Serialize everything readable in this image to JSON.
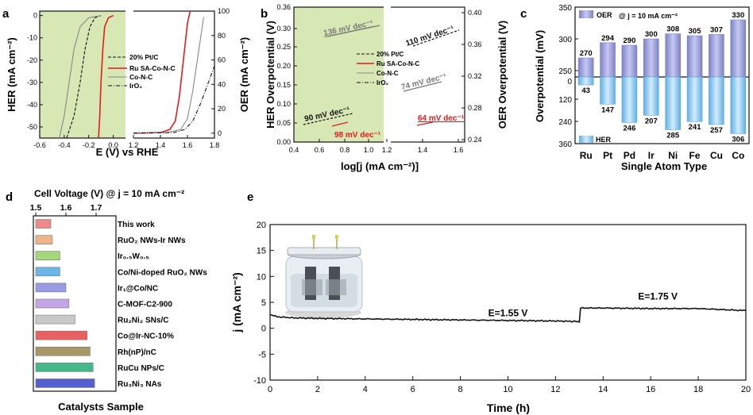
{
  "colors": {
    "ru": "#e41a1c",
    "ref": "#111111",
    "gray": "#777777",
    "green_band": "#d7e8b4",
    "oer_bar": "#9b9fd6",
    "her_bar": "#8fc9ee",
    "stability": "#111111"
  },
  "panels": {
    "a": {
      "letter": "a"
    },
    "b": {
      "letter": "b"
    },
    "c": {
      "letter": "c"
    },
    "d": {
      "letter": "d"
    },
    "e": {
      "letter": "e"
    }
  },
  "chart_data": [
    {
      "id": "a",
      "type": "line",
      "xlabel": "E (V) vs RHE",
      "ylabel_left": "HER (mA cm⁻²)",
      "ylabel_right": "OER (mA cm⁻²)",
      "x_ticks": [
        "-0.6",
        "-0.4",
        "-0.2",
        "0.0",
        "1.2",
        "1.4",
        "1.6",
        "1.8"
      ],
      "y_left_ticks": [
        "0",
        "-10",
        "-20",
        "-30",
        "-40",
        "-50"
      ],
      "y_right_ticks": [
        "100",
        "80",
        "60",
        "40",
        "20",
        "0"
      ],
      "xlim_her": [
        -0.6,
        0.1
      ],
      "xlim_oer": [
        1.2,
        1.8
      ],
      "ylim_her": [
        -55,
        2
      ],
      "ylim_oer": [
        -4,
        100
      ],
      "legend": [
        "20% Pt/C",
        "Ru SA-Co-N-C",
        "Co-N-C",
        "IrO₂"
      ],
      "series": [
        {
          "name": "20% Pt/C",
          "style": "dashed",
          "her": [
            [
              -0.38,
              -55
            ],
            [
              -0.32,
              -45
            ],
            [
              -0.27,
              -30
            ],
            [
              -0.23,
              -15
            ],
            [
              -0.19,
              -5
            ],
            [
              -0.15,
              -1
            ],
            [
              -0.1,
              0
            ]
          ]
        },
        {
          "name": "Ru SA-Co-N-C",
          "style": "solid-red",
          "her": [
            [
              -0.12,
              -55
            ],
            [
              -0.11,
              -45
            ],
            [
              -0.1,
              -30
            ],
            [
              -0.085,
              -15
            ],
            [
              -0.07,
              -5
            ],
            [
              -0.04,
              -1
            ],
            [
              0,
              0
            ]
          ],
          "oer": [
            [
              1.2,
              0
            ],
            [
              1.4,
              0.5
            ],
            [
              1.47,
              3
            ],
            [
              1.51,
              10
            ],
            [
              1.54,
              30
            ],
            [
              1.57,
              60
            ],
            [
              1.6,
              90
            ],
            [
              1.62,
              100
            ]
          ]
        },
        {
          "name": "Co-N-C",
          "style": "solid-gray",
          "her": [
            [
              -0.44,
              -55
            ],
            [
              -0.4,
              -45
            ],
            [
              -0.36,
              -30
            ],
            [
              -0.32,
              -15
            ],
            [
              -0.27,
              -5
            ],
            [
              -0.2,
              -1
            ],
            [
              -0.1,
              0
            ]
          ],
          "oer": [
            [
              1.2,
              0
            ],
            [
              1.45,
              0.5
            ],
            [
              1.55,
              3
            ],
            [
              1.6,
              12
            ],
            [
              1.64,
              35
            ],
            [
              1.68,
              65
            ],
            [
              1.72,
              95
            ]
          ]
        },
        {
          "name": "IrO₂",
          "style": "dashdot",
          "oer": [
            [
              1.2,
              0
            ],
            [
              1.5,
              0.5
            ],
            [
              1.58,
              3
            ],
            [
              1.64,
              10
            ],
            [
              1.7,
              25
            ],
            [
              1.75,
              40
            ],
            [
              1.8,
              55
            ]
          ]
        }
      ]
    },
    {
      "id": "b",
      "type": "line",
      "xlabel": "log[j (mA cm⁻²)]",
      "ylabel_left": "HER Overpotential (V)",
      "ylabel_right": "OER Overpotential (V)",
      "x_ticks": [
        "0.4",
        "0.6",
        "0.8",
        "1.0",
        "1.2",
        "1.4",
        "1.6"
      ],
      "y_left_ticks": [
        "0.36",
        "0.30",
        "0.25",
        "0.20",
        "0.15",
        "0.10",
        "0.05",
        "0.00"
      ],
      "y_right_ticks": [
        "0.40",
        "0.36",
        "0.32",
        "0.28",
        "0.24"
      ],
      "legend": [
        "20% Pt/C",
        "Ru SA-Co-N-C",
        "Co-N-C",
        "IrO₂"
      ],
      "tafel_labels": [
        {
          "text": "136 mV dec⁻¹",
          "color": "gray"
        },
        {
          "text": "90 mV dec⁻¹",
          "color": "ref"
        },
        {
          "text": "98 mV dec⁻¹",
          "color": "ru"
        },
        {
          "text": "110 mV dec⁻¹",
          "color": "ref"
        },
        {
          "text": "74 mV dec⁻¹",
          "color": "gray"
        },
        {
          "text": "64 mV dec⁻¹",
          "color": "ru"
        }
      ]
    },
    {
      "id": "c",
      "type": "bar",
      "title": "@ j = 10 mA cm⁻²",
      "xlabel": "Single Atom Type",
      "ylabel": "Overpotential (mV)",
      "categories": [
        "Ru",
        "Pt",
        "Pd",
        "Ir",
        "Ni",
        "Fe",
        "Cu",
        "Co"
      ],
      "y_ticks_top": [
        "350",
        "300",
        "250"
      ],
      "y_ticks_bottom": [
        "0",
        "120",
        "240",
        "360"
      ],
      "series": [
        {
          "name": "OER",
          "values": [
            270,
            294,
            290,
            300,
            308,
            305,
            307,
            330
          ]
        },
        {
          "name": "HER",
          "values": [
            43,
            147,
            246,
            207,
            285,
            241,
            257,
            306
          ]
        }
      ]
    },
    {
      "id": "d",
      "type": "bar",
      "title": "Cell Voltage (V) @ j = 10 mA cm⁻²",
      "xlabel": "Catalysts Sample",
      "x_ticks": [
        "1.5",
        "1.6",
        "1.7"
      ],
      "xlim": [
        1.5,
        1.75
      ],
      "categories": [
        "This work",
        "RuO₂ NWs-Ir NWs",
        "Ir₀.₅W₀.₅",
        "Co/Ni-doped RuO₂ NWs",
        "Ir₁@Co/NC",
        "C-MOF-C2-900",
        "Ru₂Ni₂ SNs/C",
        "Co@Ir-NC-10%",
        "Rh(nP)/nC",
        "RuCu NPs/C",
        "Ru₃Ni₃ NAs"
      ],
      "values": [
        1.55,
        1.555,
        1.58,
        1.58,
        1.6,
        1.61,
        1.63,
        1.67,
        1.68,
        1.69,
        1.695
      ],
      "bar_colors": [
        "#f08a8a",
        "#f0b48a",
        "#a4d77a",
        "#6ab6e8",
        "#9a9ae6",
        "#c4a4e6",
        "#c8c8c8",
        "#e86060",
        "#a89868",
        "#44b888",
        "#5560d0"
      ]
    },
    {
      "id": "e",
      "type": "line",
      "xlabel": "Time (h)",
      "ylabel": "j (mA cm⁻²)",
      "x_ticks": [
        "0",
        "2",
        "4",
        "6",
        "8",
        "10",
        "12",
        "14",
        "16",
        "18",
        "20"
      ],
      "y_ticks": [
        "20",
        "15",
        "10",
        "5",
        "0",
        "-5",
        "-10"
      ],
      "xlim": [
        0,
        20
      ],
      "ylim": [
        -10,
        20
      ],
      "annotations": [
        {
          "text": "E=1.55 V",
          "x": 10,
          "y": 1.7
        },
        {
          "text": "E=1.75 V",
          "x": 16.3,
          "y": 4.9
        }
      ],
      "series": [
        {
          "name": "stability",
          "x": [
            0,
            0.3,
            1,
            2,
            4,
            6,
            8,
            10,
            12,
            12.95,
            13.0,
            13.05,
            14,
            16,
            18,
            20
          ],
          "y": [
            2.6,
            2.2,
            2.0,
            1.9,
            1.8,
            1.7,
            1.6,
            1.5,
            1.4,
            1.3,
            1.2,
            3.9,
            3.9,
            3.8,
            3.8,
            3.4
          ]
        }
      ]
    }
  ]
}
